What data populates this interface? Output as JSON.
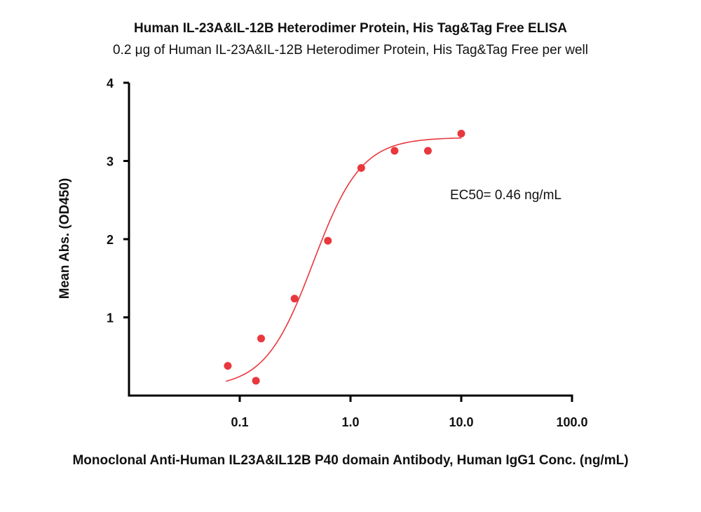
{
  "chart_data": {
    "type": "scatter",
    "title": "Human IL-23A&IL-12B Heterodimer Protein, His Tag&Tag Free ELISA",
    "subtitle": "0.2 μg of Human IL-23A&IL-12B Heterodimer Protein, His Tag&Tag Free per well",
    "xlabel": "Monoclonal Anti-Human IL23A&IL12B P40 domain Antibody, Human IgG1 Conc. (ng/mL)",
    "ylabel": "Mean Abs. (OD450)",
    "x_scale": "log",
    "xlim": [
      0.01,
      100
    ],
    "ylim": [
      0,
      4
    ],
    "x_ticks": [
      {
        "value": 0.1,
        "label": "0.1"
      },
      {
        "value": 1,
        "label": "1.0"
      },
      {
        "value": 10,
        "label": "10.0"
      },
      {
        "value": 100,
        "label": "100.0"
      }
    ],
    "y_ticks": [
      {
        "value": 1,
        "label": "1"
      },
      {
        "value": 2,
        "label": "2"
      },
      {
        "value": 3,
        "label": "3"
      },
      {
        "value": 4,
        "label": "4"
      }
    ],
    "grid": false,
    "series": [
      {
        "color": "#e8383d",
        "points": [
          {
            "x": 0.078,
            "y": 0.38
          },
          {
            "x": 0.14,
            "y": 0.19
          },
          {
            "x": 0.156,
            "y": 0.73
          },
          {
            "x": 0.3125,
            "y": 1.24
          },
          {
            "x": 0.625,
            "y": 1.98
          },
          {
            "x": 1.25,
            "y": 2.91
          },
          {
            "x": 2.5,
            "y": 3.13
          },
          {
            "x": 5.0,
            "y": 3.13
          },
          {
            "x": 10.0,
            "y": 3.35
          }
        ],
        "fit": {
          "model": "4PL",
          "bottom": 0.1,
          "top": 3.3,
          "ec50": 0.46,
          "hill": 2.0,
          "x_range": [
            0.075,
            10
          ]
        }
      }
    ],
    "annotations": [
      "EC50= 0.46 ng/mL"
    ]
  }
}
